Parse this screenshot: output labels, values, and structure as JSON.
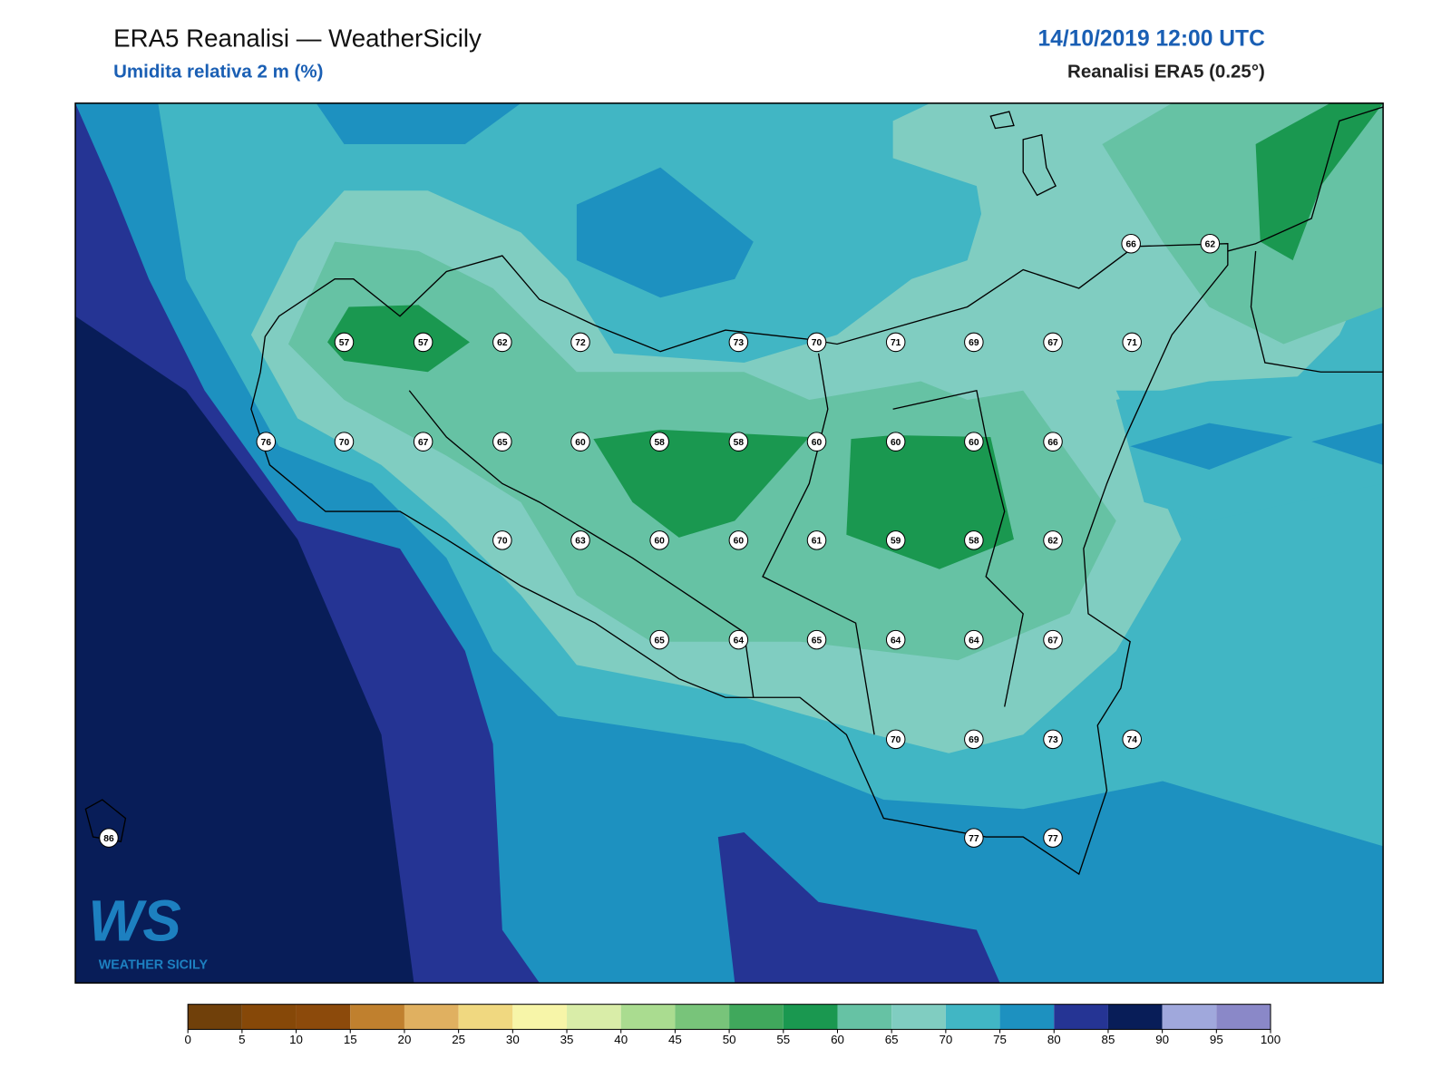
{
  "header": {
    "title": "ERA5 Reanalisi — WeatherSicily",
    "subtitle": "Umidita relativa 2 m (%)",
    "datetime": "14/10/2019 12:00 UTC",
    "source": "Reanalisi ERA5 (0.25°)"
  },
  "map": {
    "stations": [
      66,
      62,
      57,
      57,
      62,
      72,
      73,
      70,
      71,
      69,
      67,
      71,
      76,
      70,
      67,
      65,
      60,
      58,
      58,
      60,
      60,
      60,
      66,
      70,
      63,
      60,
      60,
      61,
      59,
      58,
      62,
      65,
      64,
      65,
      64,
      64,
      67,
      70,
      69,
      73,
      74,
      86,
      77,
      77
    ]
  },
  "logo": {
    "text": "WS",
    "caption": "WEATHER SICILY"
  },
  "colorbar": {
    "ticks": [
      0,
      5,
      10,
      15,
      20,
      25,
      30,
      35,
      40,
      45,
      50,
      55,
      60,
      65,
      70,
      75,
      80,
      85,
      90,
      95,
      100
    ],
    "colors": [
      "#70400a",
      "#864808",
      "#8c4a0b",
      "#c0802e",
      "#e0b060",
      "#f0d880",
      "#f7f5a8",
      "#d9eda8",
      "#aadc90",
      "#78c47a",
      "#40a85c",
      "#1a9850",
      "#66c2a4",
      "#80cdc1",
      "#41b6c4",
      "#1d91c0",
      "#253494",
      "#081d58",
      "#a0a8dc",
      "#8a88c8"
    ]
  }
}
